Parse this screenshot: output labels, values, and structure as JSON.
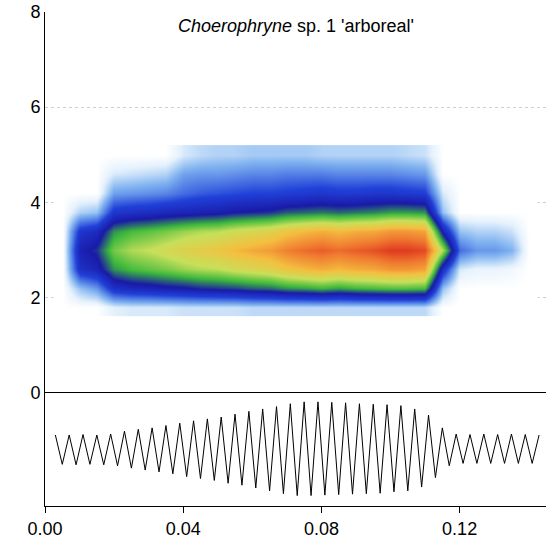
{
  "chart_data": [
    {
      "type": "heatmap",
      "title": "Choerophryne sp. 1 'arboreal'",
      "x": [
        0.005,
        0.01,
        0.015,
        0.02,
        0.025,
        0.03,
        0.035,
        0.04,
        0.045,
        0.05,
        0.055,
        0.06,
        0.065,
        0.07,
        0.075,
        0.08,
        0.085,
        0.09,
        0.095,
        0.1,
        0.105,
        0.11,
        0.115,
        0.12,
        0.125,
        0.13,
        0.135,
        0.14
      ],
      "y": [
        1.8,
        2.2,
        2.6,
        3.0,
        3.4,
        3.8,
        4.2,
        4.6,
        5.0
      ],
      "z": [
        [
          0,
          0,
          0,
          0.04,
          0.05,
          0.05,
          0.05,
          0.06,
          0.06,
          0.06,
          0.06,
          0.07,
          0.07,
          0.07,
          0.07,
          0.07,
          0.07,
          0.07,
          0.07,
          0.07,
          0.07,
          0.07,
          0,
          0,
          0,
          0,
          0,
          0
        ],
        [
          0,
          0.1,
          0.15,
          0.3,
          0.33,
          0.34,
          0.36,
          0.37,
          0.39,
          0.4,
          0.41,
          0.43,
          0.44,
          0.47,
          0.48,
          0.5,
          0.48,
          0.5,
          0.51,
          0.52,
          0.52,
          0.51,
          0.1,
          0,
          0,
          0,
          0,
          0
        ],
        [
          0,
          0.3,
          0.34,
          0.47,
          0.51,
          0.53,
          0.55,
          0.58,
          0.6,
          0.61,
          0.64,
          0.66,
          0.68,
          0.72,
          0.75,
          0.77,
          0.75,
          0.77,
          0.78,
          0.81,
          0.81,
          0.79,
          0.3,
          0.05,
          0.03,
          0.03,
          0.02,
          0
        ],
        [
          0,
          0.35,
          0.4,
          0.55,
          0.6,
          0.62,
          0.65,
          0.68,
          0.7,
          0.72,
          0.75,
          0.78,
          0.8,
          0.85,
          0.88,
          0.9,
          0.88,
          0.9,
          0.92,
          0.95,
          0.95,
          0.93,
          0.6,
          0.2,
          0.15,
          0.15,
          0.12,
          0
        ],
        [
          0,
          0.28,
          0.32,
          0.47,
          0.51,
          0.53,
          0.55,
          0.58,
          0.6,
          0.61,
          0.64,
          0.66,
          0.68,
          0.72,
          0.75,
          0.77,
          0.75,
          0.77,
          0.78,
          0.81,
          0.81,
          0.79,
          0.35,
          0.1,
          0.08,
          0.08,
          0.06,
          0
        ],
        [
          0,
          0.08,
          0.1,
          0.28,
          0.3,
          0.31,
          0.33,
          0.34,
          0.35,
          0.36,
          0.38,
          0.39,
          0.4,
          0.43,
          0.44,
          0.45,
          0.44,
          0.45,
          0.46,
          0.48,
          0.48,
          0.47,
          0.1,
          0,
          0,
          0,
          0,
          0
        ],
        [
          0,
          0,
          0,
          0.14,
          0.15,
          0.16,
          0.17,
          0.2,
          0.22,
          0.23,
          0.24,
          0.25,
          0.25,
          0.26,
          0.27,
          0.28,
          0.27,
          0.27,
          0.28,
          0.28,
          0.27,
          0.26,
          0.05,
          0,
          0,
          0,
          0,
          0
        ],
        [
          0,
          0,
          0,
          0.05,
          0.06,
          0.07,
          0.08,
          0.14,
          0.15,
          0.15,
          0.16,
          0.17,
          0.17,
          0.18,
          0.18,
          0.18,
          0.17,
          0.17,
          0.17,
          0.17,
          0.16,
          0.15,
          0,
          0,
          0,
          0,
          0,
          0
        ],
        [
          0,
          0,
          0,
          0,
          0,
          0,
          0,
          0.05,
          0.07,
          0.08,
          0.08,
          0.09,
          0.09,
          0.09,
          0.09,
          0.08,
          0.08,
          0.08,
          0.08,
          0.08,
          0.07,
          0.06,
          0,
          0,
          0,
          0,
          0,
          0
        ]
      ],
      "zlim": [
        0,
        1
      ],
      "xlim": [
        0,
        0.145
      ],
      "ylim": [
        0,
        8
      ],
      "yticks": [
        0,
        2,
        4,
        6,
        8
      ],
      "grid": true,
      "tick_labels": "y"
    },
    {
      "type": "line",
      "x": [
        0.003,
        0.005,
        0.007,
        0.009,
        0.011,
        0.013,
        0.015,
        0.017,
        0.019,
        0.021,
        0.023,
        0.025,
        0.027,
        0.029,
        0.031,
        0.033,
        0.035,
        0.037,
        0.039,
        0.041,
        0.043,
        0.045,
        0.047,
        0.049,
        0.051,
        0.053,
        0.055,
        0.057,
        0.059,
        0.061,
        0.063,
        0.065,
        0.067,
        0.069,
        0.071,
        0.073,
        0.075,
        0.077,
        0.079,
        0.081,
        0.083,
        0.085,
        0.087,
        0.089,
        0.091,
        0.093,
        0.095,
        0.097,
        0.099,
        0.101,
        0.103,
        0.105,
        0.107,
        0.109,
        0.111,
        0.113,
        0.115,
        0.117,
        0.119,
        0.121,
        0.123,
        0.125,
        0.127,
        0.129,
        0.131,
        0.133,
        0.135,
        0.137,
        0.139,
        0.141,
        0.143
      ],
      "values": [
        0.3,
        -0.32,
        0.3,
        -0.33,
        0.31,
        -0.32,
        0.3,
        -0.33,
        0.32,
        -0.35,
        0.38,
        -0.4,
        0.42,
        -0.44,
        0.45,
        -0.48,
        0.5,
        -0.52,
        0.55,
        -0.58,
        0.6,
        -0.62,
        0.64,
        -0.66,
        0.68,
        -0.72,
        0.74,
        -0.76,
        0.8,
        -0.82,
        0.85,
        -0.88,
        0.9,
        -0.94,
        0.96,
        -0.98,
        1.0,
        -0.98,
        1.0,
        -0.97,
        0.99,
        -0.96,
        0.98,
        -0.95,
        0.96,
        -0.94,
        0.95,
        -0.93,
        0.94,
        -0.9,
        0.92,
        -0.88,
        0.85,
        -0.8,
        0.72,
        -0.6,
        0.45,
        -0.35,
        0.32,
        -0.3,
        0.31,
        -0.3,
        0.32,
        -0.3,
        0.31,
        -0.3,
        0.32,
        -0.3,
        0.31,
        -0.3,
        0.3
      ],
      "color": "#000000",
      "xlim": [
        0,
        0.145
      ],
      "ylim": [
        -1.2,
        1.2
      ],
      "xticks": [
        {
          "value": 0,
          "label": "0.00"
        },
        {
          "value": 0.04,
          "label": "0.04"
        },
        {
          "value": 0.08,
          "label": "0.08"
        },
        {
          "value": 0.12,
          "label": "0.12"
        }
      ],
      "tick_labels": "x"
    }
  ]
}
